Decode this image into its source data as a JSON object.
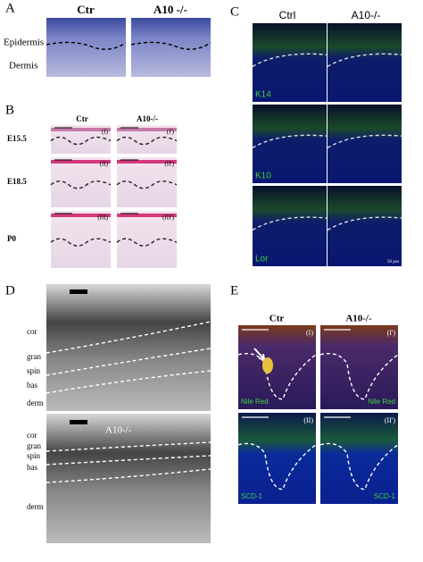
{
  "panel_a": {
    "label": "A",
    "columns": [
      "Ctr",
      "A10 -/-"
    ],
    "regions": [
      "Epidermis",
      "Dermis"
    ]
  },
  "panel_b": {
    "label": "B",
    "columns": [
      "Ctr",
      "A10-/-"
    ],
    "rows": [
      "E15.5",
      "E18.5",
      "P0"
    ],
    "image_labels": [
      [
        "(I)",
        "(I')"
      ],
      [
        "(II)",
        "(II')"
      ],
      [
        "(III)",
        "(III')"
      ]
    ]
  },
  "panel_c": {
    "label": "C",
    "columns": [
      "Ctrl",
      "A10-/-"
    ],
    "stains": [
      "K14",
      "K10",
      "Lor"
    ],
    "scale_bar": "50 µm"
  },
  "panel_d": {
    "label": "D",
    "image_label": "A10-/-",
    "layers_top": [
      "cor",
      "gran",
      "spin",
      "bas",
      "derm"
    ],
    "layers_bottom": [
      "cor",
      "gran",
      "spin",
      "bas",
      "derm"
    ]
  },
  "panel_e": {
    "label": "E",
    "columns": [
      "Ctr",
      "A10-/-"
    ],
    "stains": [
      "Nile Red",
      "SCD-1"
    ],
    "image_labels": [
      [
        "(I)",
        "(I')"
      ],
      [
        "(II)",
        "(II')"
      ]
    ]
  }
}
